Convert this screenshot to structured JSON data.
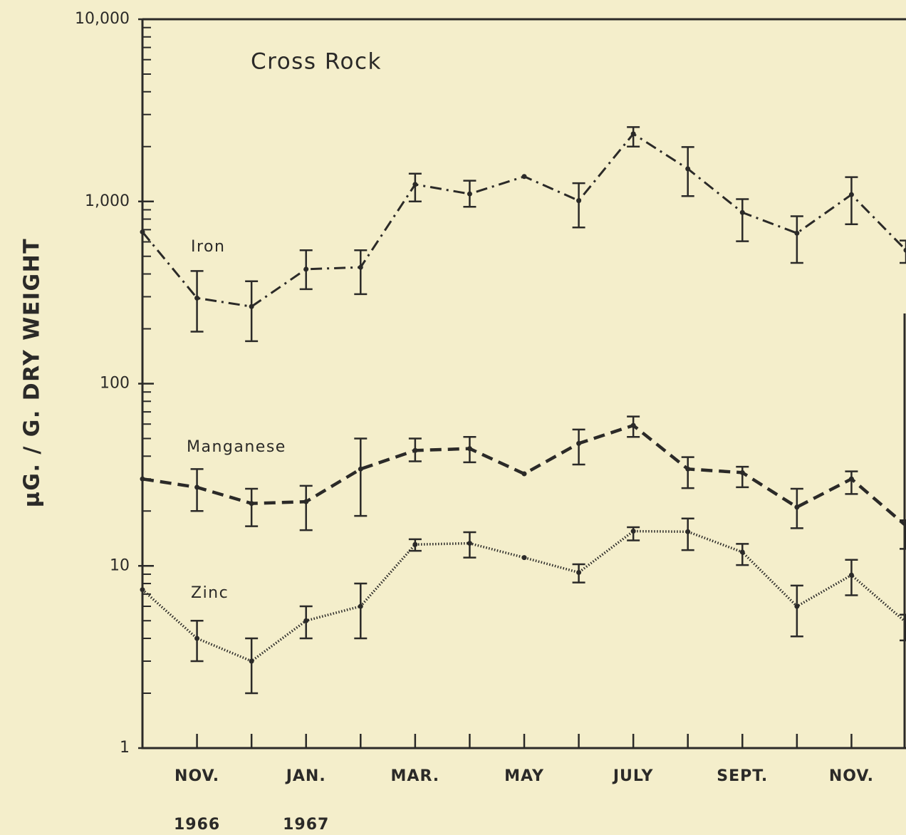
{
  "chart_data": {
    "type": "line",
    "title": "Cross Rock",
    "ylabel": "µG. / G. DRY WEIGHT",
    "log_y": true,
    "categories": [
      null,
      "NOV.",
      null,
      "JAN.",
      null,
      "MAR.",
      null,
      "MAY",
      null,
      "JULY",
      null,
      "SEPT.",
      null,
      "NOV.",
      null
    ],
    "years": [
      null,
      "1966",
      null,
      "1967",
      null,
      null,
      null,
      null,
      null,
      null,
      null,
      null,
      null,
      null,
      null
    ],
    "ylim": [
      1,
      10000
    ],
    "yticks": [
      1,
      10,
      100,
      {
        "value": 1000,
        "label": "1,000"
      },
      {
        "value": 10000,
        "label": "10,000"
      }
    ],
    "minor_yticks": [
      2,
      3,
      4,
      5,
      6,
      7,
      8,
      9,
      20,
      30,
      40,
      50,
      60,
      70,
      80,
      90,
      200,
      300,
      400,
      500,
      600,
      700,
      800,
      900,
      2000,
      3000,
      4000,
      5000,
      6000,
      7000,
      8000,
      9000
    ],
    "series": [
      {
        "name": "Iron",
        "color": "#2b2a28",
        "style": "dashdot",
        "values": [
          680,
          295,
          265,
          425,
          435,
          1240,
          1100,
          1370,
          1010,
          2350,
          1510,
          870,
          670,
          1090,
          540
        ],
        "lower": [
          null,
          193,
          171,
          330,
          310,
          1000,
          935,
          null,
          720,
          2000,
          1070,
          605,
          460,
          750,
          460
        ],
        "upper": [
          null,
          415,
          365,
          540,
          540,
          1420,
          1300,
          null,
          1260,
          2560,
          1990,
          1030,
          830,
          1360,
          610
        ]
      },
      {
        "name": "Manganese",
        "color": "#2b2a28",
        "style": "dashed",
        "values": [
          30,
          27,
          22,
          22.5,
          34,
          43,
          44,
          32,
          47,
          59,
          34,
          32.5,
          21,
          30,
          16.6
        ],
        "lower": [
          null,
          20,
          16.5,
          15.7,
          18.8,
          37.5,
          37,
          null,
          36,
          51,
          26.7,
          27,
          16.1,
          24.8,
          12.4
        ],
        "upper": [
          null,
          34,
          26.5,
          27.5,
          50,
          50,
          51,
          null,
          56,
          66,
          39.5,
          35,
          26.5,
          33,
          17.8
        ]
      },
      {
        "name": "Zinc",
        "color": "#2b2a28",
        "style": "dotted",
        "values": [
          7.4,
          4.0,
          3.0,
          5.0,
          6.0,
          13.1,
          13.3,
          11.1,
          9.2,
          15.5,
          15.4,
          11.9,
          6.0,
          8.9,
          4.9
        ],
        "lower": [
          null,
          3.0,
          2.0,
          4.0,
          4.0,
          12.1,
          11.1,
          null,
          8.1,
          13.8,
          12.2,
          10.1,
          4.1,
          6.9,
          3.9
        ],
        "upper": [
          null,
          5.0,
          4.0,
          6.0,
          8.0,
          14,
          15.3,
          null,
          10.2,
          16.3,
          18.2,
          13.2,
          7.8,
          10.8,
          5.4
        ]
      }
    ]
  }
}
